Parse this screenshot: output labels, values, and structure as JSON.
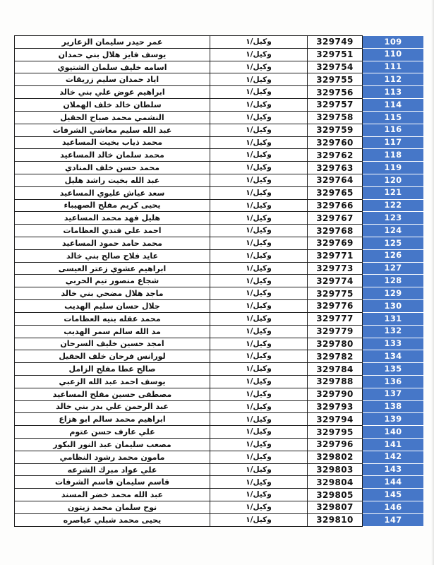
{
  "document": {
    "type": "scanned-roster-table",
    "direction": "rtl"
  },
  "colors": {
    "seq_cell_blue": "#4677C8",
    "cell_border": "#1e1e1e",
    "page_background": "#fdfdfc",
    "seq_text": "#ffffff",
    "cell_text": "#111111"
  },
  "table": {
    "columns": [
      "name",
      "role",
      "number",
      "seq"
    ],
    "rows": [
      {
        "seq": "109",
        "number": "329749",
        "role": "وكيل/١",
        "name": "عمر حيدر سليمان الزعارير"
      },
      {
        "seq": "110",
        "number": "329751",
        "role": "وكيل/١",
        "name": "يوسف فايز هلال بني حمدان"
      },
      {
        "seq": "111",
        "number": "329754",
        "role": "وكيل/١",
        "name": "اسامه خليف سلمان الشتيوي"
      },
      {
        "seq": "112",
        "number": "329755",
        "role": "وكيل/١",
        "name": "اياد حمدان سليم زريقات"
      },
      {
        "seq": "113",
        "number": "329756",
        "role": "وكيل/١",
        "name": "ابراهيم عوض علي بني خالد"
      },
      {
        "seq": "114",
        "number": "329757",
        "role": "وكيل/١",
        "name": "سلطان خالد خلف الهملان"
      },
      {
        "seq": "115",
        "number": "329758",
        "role": "وكيل/١",
        "name": "النشمي محمد صباح الحقيل"
      },
      {
        "seq": "116",
        "number": "329759",
        "role": "وكيل/١",
        "name": "عبد الله سليم معاشي الشرفات"
      },
      {
        "seq": "117",
        "number": "329760",
        "role": "وكيل/١",
        "name": "محمد ذياب بخيت المساعيد"
      },
      {
        "seq": "118",
        "number": "329762",
        "role": "وكيل/١",
        "name": "محمد سلمان خالد المساعيد"
      },
      {
        "seq": "119",
        "number": "329763",
        "role": "وكيل/١",
        "name": "محمد حسن خلف المنادي"
      },
      {
        "seq": "120",
        "number": "329764",
        "role": "وكيل/١",
        "name": "عبد الله بخيت راشد هليل"
      },
      {
        "seq": "121",
        "number": "329765",
        "role": "وكيل/١",
        "name": "سعد عياش عليوي المساعيد"
      },
      {
        "seq": "122",
        "number": "329766",
        "role": "وكيل/١",
        "name": "يحيى كريم مفلح الصهيباء"
      },
      {
        "seq": "123",
        "number": "329767",
        "role": "وكيل/١",
        "name": "هليل فهد محمد المساعيد"
      },
      {
        "seq": "124",
        "number": "329768",
        "role": "وكيل/١",
        "name": "احمد علي فندي العظامات"
      },
      {
        "seq": "125",
        "number": "329769",
        "role": "وكيل/١",
        "name": "محمد حامد حمود المساعيد"
      },
      {
        "seq": "126",
        "number": "329771",
        "role": "وكيل/١",
        "name": "عايد فلاح صالح بني خالد"
      },
      {
        "seq": "127",
        "number": "329773",
        "role": "وكيل/١",
        "name": "ابراهيم عشوي زعتر العيسى"
      },
      {
        "seq": "128",
        "number": "329774",
        "role": "وكيل/١",
        "name": "شجاع منصور تيم الحربي"
      },
      {
        "seq": "129",
        "number": "329775",
        "role": "وكيل/١",
        "name": "ماجد هلال مضحي بني خالد"
      },
      {
        "seq": "130",
        "number": "329776",
        "role": "وكيل/١",
        "name": "جلال حسان سليم الهديب"
      },
      {
        "seq": "131",
        "number": "329777",
        "role": "وكيل/١",
        "name": "محمد عقله بنيه العظامات"
      },
      {
        "seq": "132",
        "number": "329779",
        "role": "وكيل/١",
        "name": "مد الله سالم سمر الهديب"
      },
      {
        "seq": "133",
        "number": "329780",
        "role": "وكيل/١",
        "name": "امجد حسين خليف السرحان"
      },
      {
        "seq": "134",
        "number": "329782",
        "role": "وكيل/١",
        "name": "لورانس فرحان خلف الحقيل"
      },
      {
        "seq": "135",
        "number": "329784",
        "role": "وكيل/١",
        "name": "صالح عطا مفلح الزامل"
      },
      {
        "seq": "136",
        "number": "329788",
        "role": "وكيل/١",
        "name": "يوسف احمد عبد الله الزعبي"
      },
      {
        "seq": "137",
        "number": "329790",
        "role": "وكيل/١",
        "name": "مصطفى حسين مفلح المساعيد"
      },
      {
        "seq": "138",
        "number": "329793",
        "role": "وكيل/١",
        "name": "عبد الرحمن علي بدر بني خالد"
      },
      {
        "seq": "139",
        "number": "329794",
        "role": "وكيل/١",
        "name": "ابراهيم محمد سالم ابو هزاع"
      },
      {
        "seq": "140",
        "number": "329795",
        "role": "وكيل/١",
        "name": "علي عارف حسن عتوم"
      },
      {
        "seq": "141",
        "number": "329796",
        "role": "وكيل/١",
        "name": "مصعب سليمان عبد النور البكور"
      },
      {
        "seq": "142",
        "number": "329802",
        "role": "وكيل/١",
        "name": "مامون محمد رشود  النظامي"
      },
      {
        "seq": "143",
        "number": "329803",
        "role": "وكيل/١",
        "name": "علي عواد مبرك الشرعه"
      },
      {
        "seq": "144",
        "number": "329804",
        "role": "وكيل/١",
        "name": "قاسم سليمان قاسم الشرفات"
      },
      {
        "seq": "145",
        "number": "329805",
        "role": "وكيل/١",
        "name": "عبد الله محمد خضر المسند"
      },
      {
        "seq": "146",
        "number": "329807",
        "role": "وكيل/١",
        "name": "نوح سلمان محمد زيتون"
      },
      {
        "seq": "147",
        "number": "329810",
        "role": "وكيل/١",
        "name": "يحيى محمد شبلي عياصره"
      }
    ]
  }
}
